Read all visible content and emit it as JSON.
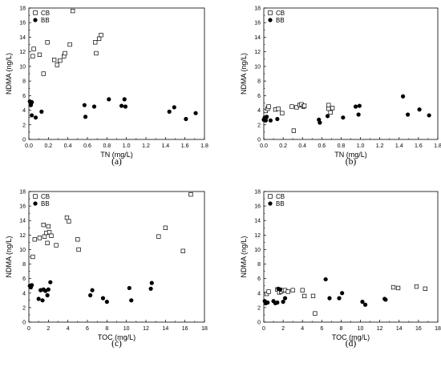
{
  "chart_data": [
    {
      "type": "scatter",
      "panel_label": "(a)",
      "xlabel": "TN (mg/L)",
      "ylabel": "NDMA (ng/L)",
      "xlim": [
        0,
        1.8
      ],
      "ylim": [
        0,
        18
      ],
      "xticks": [
        "0.0",
        "0.2",
        "0.4",
        "0.6",
        "0.8",
        "1.0",
        "1.2",
        "1.4",
        "1.6",
        "1.8"
      ],
      "yticks": [
        "0",
        "2",
        "4",
        "6",
        "8",
        "10",
        "12",
        "14",
        "16",
        "18"
      ],
      "legend": [
        "CB",
        "BB"
      ],
      "series": [
        {
          "name": "CB",
          "marker": "square-open",
          "x": [
            0.04,
            0.05,
            0.11,
            0.15,
            0.19,
            0.26,
            0.29,
            0.32,
            0.36,
            0.37,
            0.42,
            0.45,
            0.68,
            0.69,
            0.72,
            0.74
          ],
          "y": [
            11.4,
            12.4,
            11.6,
            9.0,
            13.3,
            10.9,
            10.2,
            10.8,
            11.4,
            11.8,
            13.0,
            17.6,
            13.3,
            11.8,
            13.8,
            14.3
          ]
        },
        {
          "name": "BB",
          "marker": "circle-filled",
          "x": [
            0.01,
            0.02,
            0.02,
            0.03,
            0.03,
            0.07,
            0.13,
            0.57,
            0.58,
            0.67,
            0.82,
            0.95,
            0.98,
            0.99,
            1.44,
            1.49,
            1.61,
            1.71
          ],
          "y": [
            5.2,
            4.7,
            4.9,
            3.3,
            5.1,
            3.0,
            3.8,
            4.7,
            3.1,
            4.5,
            5.5,
            4.6,
            5.5,
            4.5,
            3.8,
            4.4,
            2.8,
            3.6
          ]
        }
      ]
    },
    {
      "type": "scatter",
      "panel_label": "(b)",
      "xlabel": "TN (mg/L)",
      "ylabel": "NDMA (ng/L)",
      "xlim": [
        0,
        1.8
      ],
      "ylim": [
        0,
        18
      ],
      "xticks": [
        "0.0",
        "0.2",
        "0.4",
        "0.6",
        "0.8",
        "1.0",
        "1.2",
        "1.4",
        "1.6",
        "1.8"
      ],
      "yticks": [
        "0",
        "2",
        "4",
        "6",
        "8",
        "10",
        "12",
        "14",
        "16",
        "18"
      ],
      "legend": [
        "CB",
        "BB"
      ],
      "series": [
        {
          "name": "CB",
          "marker": "square-open",
          "x": [
            0.02,
            0.04,
            0.05,
            0.12,
            0.15,
            0.19,
            0.29,
            0.31,
            0.34,
            0.37,
            0.39,
            0.41,
            0.42,
            0.67,
            0.67,
            0.69,
            0.71
          ],
          "y": [
            3.9,
            4.2,
            4.5,
            4.1,
            4.2,
            3.6,
            4.5,
            1.2,
            4.4,
            4.7,
            4.8,
            4.5,
            4.6,
            4.7,
            4.2,
            3.7,
            4.3
          ]
        },
        {
          "name": "BB",
          "marker": "circle-filled",
          "x": [
            0.0,
            0.01,
            0.02,
            0.02,
            0.03,
            0.07,
            0.14,
            0.57,
            0.58,
            0.66,
            0.82,
            0.95,
            0.98,
            0.99,
            1.44,
            1.49,
            1.61,
            1.71
          ],
          "y": [
            2.7,
            3.0,
            2.6,
            2.9,
            3.1,
            2.6,
            2.8,
            2.7,
            2.3,
            3.2,
            3.0,
            4.5,
            3.4,
            4.6,
            5.9,
            3.4,
            4.1,
            3.3
          ]
        }
      ]
    },
    {
      "type": "scatter",
      "panel_label": "(c)",
      "xlabel": "TOC (mg/L)",
      "ylabel": "NDMA (ng/L)",
      "xlim": [
        0,
        18
      ],
      "ylim": [
        0,
        18
      ],
      "xticks": [
        "0",
        "2",
        "4",
        "6",
        "8",
        "10",
        "12",
        "14",
        "16",
        "18"
      ],
      "yticks": [
        "0",
        "2",
        "4",
        "6",
        "8",
        "10",
        "12",
        "14",
        "16",
        "18"
      ],
      "legend": [
        "CB",
        "BB"
      ],
      "series": [
        {
          "name": "CB",
          "marker": "square-open",
          "x": [
            0.4,
            0.6,
            1.1,
            1.5,
            1.6,
            1.8,
            1.9,
            2.0,
            2.1,
            2.3,
            2.8,
            3.9,
            4.1,
            5.0,
            5.1,
            13.3,
            14.0,
            15.8,
            16.6
          ],
          "y": [
            9.0,
            11.4,
            11.6,
            13.4,
            11.8,
            12.3,
            10.9,
            13.2,
            12.4,
            11.9,
            10.6,
            14.4,
            13.9,
            11.4,
            10.0,
            11.8,
            13.0,
            9.8,
            17.6
          ],
          "note": "last two points overlap nearly"
        },
        {
          "name": "BB",
          "marker": "circle-filled",
          "x": [
            0.1,
            0.2,
            0.3,
            1.0,
            1.2,
            1.4,
            1.5,
            1.7,
            1.9,
            2.0,
            2.2,
            6.3,
            6.5,
            7.6,
            8.0,
            10.3,
            10.5,
            12.5,
            12.6
          ],
          "y": [
            5.0,
            4.8,
            5.1,
            3.2,
            4.4,
            3.0,
            4.5,
            4.3,
            3.7,
            4.5,
            5.5,
            3.7,
            4.4,
            3.3,
            2.8,
            4.7,
            3.0,
            4.6,
            5.4
          ]
        }
      ]
    },
    {
      "type": "scatter",
      "panel_label": "(d)",
      "xlabel": "TOC (mg/L)",
      "ylabel": "NDMA (ng/L)",
      "xlim": [
        0,
        18
      ],
      "ylim": [
        0,
        18
      ],
      "xticks": [
        "0",
        "2",
        "4",
        "6",
        "8",
        "10",
        "12",
        "14",
        "16",
        "18"
      ],
      "yticks": [
        "0",
        "2",
        "4",
        "6",
        "8",
        "10",
        "12",
        "14",
        "16",
        "18"
      ],
      "legend": [
        "CB",
        "BB"
      ],
      "series": [
        {
          "name": "CB",
          "marker": "square-open",
          "x": [
            0.3,
            0.5,
            1.4,
            1.6,
            1.8,
            2.0,
            2.2,
            2.5,
            3.0,
            4.0,
            4.2,
            5.1,
            5.3,
            13.4,
            13.9,
            15.8,
            16.7
          ],
          "y": [
            3.9,
            4.2,
            4.5,
            4.1,
            4.2,
            4.4,
            4.4,
            4.2,
            4.4,
            4.4,
            3.6,
            3.6,
            1.2,
            4.8,
            4.7,
            4.9,
            4.6
          ]
        },
        {
          "name": "BB",
          "marker": "circle-filled",
          "x": [
            0.1,
            0.2,
            0.4,
            1.0,
            1.2,
            1.4,
            1.5,
            1.7,
            2.0,
            2.2,
            6.4,
            6.8,
            7.8,
            8.1,
            10.2,
            10.5,
            12.5,
            12.6
          ],
          "y": [
            2.9,
            2.6,
            2.7,
            2.9,
            2.6,
            2.7,
            4.6,
            4.5,
            2.8,
            3.3,
            5.9,
            3.3,
            3.3,
            4.0,
            2.8,
            2.4,
            3.2,
            3.1
          ]
        }
      ]
    }
  ]
}
